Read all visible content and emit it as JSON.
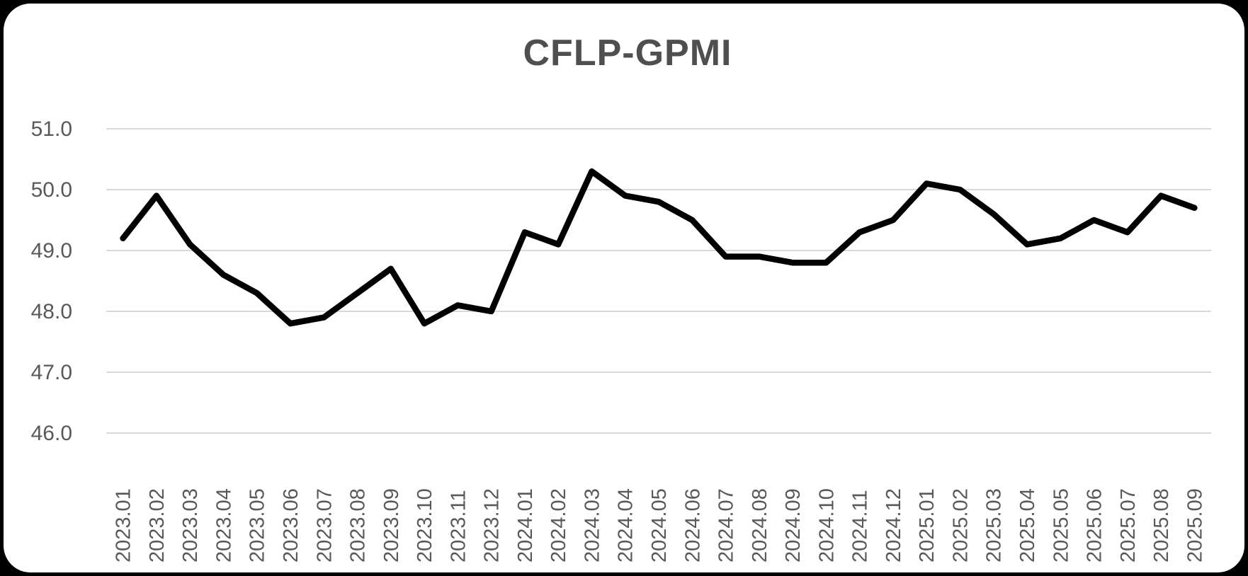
{
  "chart_data": {
    "type": "line",
    "title": "CFLP-GPMI",
    "categories": [
      "2023.01",
      "2023.02",
      "2023.03",
      "2023.04",
      "2023.05",
      "2023.06",
      "2023.07",
      "2023.08",
      "2023.09",
      "2023.10",
      "2023.11",
      "2023.12",
      "2024.01",
      "2024.02",
      "2024.03",
      "2024.04",
      "2024.05",
      "2024.06",
      "2024.07",
      "2024.08",
      "2024.09",
      "2024.10",
      "2024.11",
      "2024.12",
      "2025.01",
      "2025.02",
      "2025.03",
      "2025.04",
      "2025.05",
      "2025.06",
      "2025.07",
      "2025.08",
      "2025.09"
    ],
    "values": [
      49.2,
      49.9,
      49.1,
      48.6,
      48.3,
      47.8,
      47.9,
      48.3,
      48.7,
      47.8,
      48.1,
      48.0,
      49.3,
      49.1,
      50.3,
      49.9,
      49.8,
      49.5,
      48.9,
      48.9,
      48.8,
      48.8,
      49.3,
      49.5,
      50.1,
      50.0,
      49.6,
      49.1,
      49.2,
      49.5,
      49.3,
      49.9,
      49.7
    ],
    "xlabel": "",
    "ylabel": "",
    "ylim": [
      46.0,
      51.0
    ],
    "yticks": [
      "51.0",
      "50.0",
      "49.0",
      "48.0",
      "47.0",
      "46.0"
    ],
    "grid": true,
    "legend_position": "none",
    "series_color": "#000000",
    "gridline_color": "#d9d9d9",
    "tick_label_color": "#595959",
    "title_color": "#4f4f4f",
    "plot_background": "#ffffff",
    "page_background": "#000000"
  }
}
